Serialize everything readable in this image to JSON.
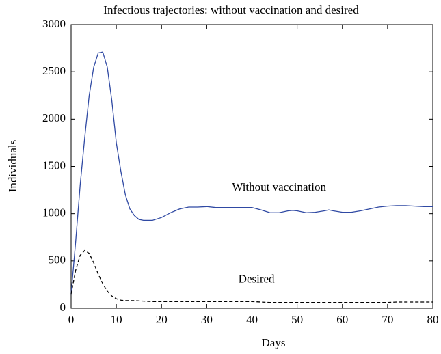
{
  "chart_data": {
    "type": "line",
    "title": "Infectious trajectories: without vaccination and desired",
    "xlabel": "Days",
    "ylabel": "Individuals",
    "xlim": [
      0,
      80
    ],
    "ylim": [
      0,
      3000
    ],
    "xticks": [
      0,
      10,
      20,
      30,
      40,
      50,
      60,
      70,
      80
    ],
    "yticks": [
      0,
      500,
      1000,
      1500,
      2000,
      2500,
      3000
    ],
    "grid": false,
    "series": [
      {
        "name": "Without vaccination",
        "color": "#2f49a3",
        "style": "solid",
        "x": [
          0,
          1,
          2,
          3,
          4,
          5,
          6,
          7,
          8,
          9,
          10,
          11,
          12,
          13,
          14,
          15,
          16,
          17,
          18,
          20,
          22,
          24,
          26,
          28,
          30,
          32,
          35,
          40,
          42,
          44,
          46,
          48,
          49,
          50,
          52,
          54,
          56,
          57,
          58,
          60,
          62,
          64,
          66,
          68,
          70,
          72,
          74,
          76,
          78,
          80
        ],
        "values": [
          150,
          700,
          1300,
          1800,
          2250,
          2550,
          2700,
          2710,
          2550,
          2200,
          1750,
          1450,
          1200,
          1050,
          980,
          940,
          930,
          930,
          930,
          960,
          1010,
          1050,
          1070,
          1070,
          1075,
          1065,
          1065,
          1065,
          1040,
          1010,
          1010,
          1030,
          1035,
          1030,
          1010,
          1015,
          1030,
          1040,
          1030,
          1015,
          1015,
          1030,
          1050,
          1070,
          1080,
          1085,
          1085,
          1080,
          1075,
          1075
        ]
      },
      {
        "name": "Desired",
        "color": "#000000",
        "style": "dashed",
        "x": [
          0,
          1,
          2,
          3,
          4,
          5,
          6,
          7,
          8,
          9,
          10,
          11,
          12,
          14,
          16,
          18,
          20,
          30,
          40,
          44,
          50,
          60,
          70,
          72,
          80
        ],
        "values": [
          150,
          400,
          560,
          610,
          580,
          480,
          360,
          260,
          180,
          130,
          100,
          85,
          80,
          80,
          75,
          70,
          70,
          70,
          70,
          60,
          60,
          60,
          60,
          65,
          65
        ]
      }
    ],
    "annotations": [
      {
        "text": "Without vaccination",
        "x": 46,
        "y": 1270
      },
      {
        "text": "Desired",
        "x": 41,
        "y": 300
      }
    ]
  }
}
